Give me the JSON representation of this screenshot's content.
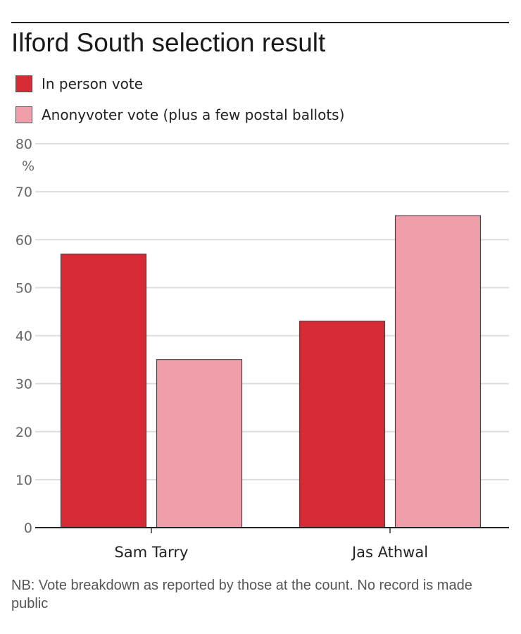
{
  "title": "Ilford South selection result",
  "legend": [
    {
      "label": "In person vote",
      "color": "#d62a35"
    },
    {
      "label": "Anonyvoter vote (plus a few postal ballots)",
      "color": "#f09ea9"
    }
  ],
  "note": "NB: Vote breakdown as reported by those at the count. No record is made public",
  "chart_data": {
    "type": "bar",
    "title": "Ilford South selection result",
    "categories": [
      "Sam Tarry",
      "Jas Athwal"
    ],
    "series": [
      {
        "name": "In person vote",
        "values": [
          57,
          43
        ],
        "color": "#d62a35"
      },
      {
        "name": "Anonyvoter vote (plus a few postal ballots)",
        "values": [
          35,
          65
        ],
        "color": "#f09ea9"
      }
    ],
    "ylim": [
      0,
      80
    ],
    "yticks": [
      0,
      10,
      20,
      30,
      40,
      50,
      60,
      70,
      80
    ],
    "yunit": "%",
    "grid": true,
    "legend_position": "top-left"
  }
}
